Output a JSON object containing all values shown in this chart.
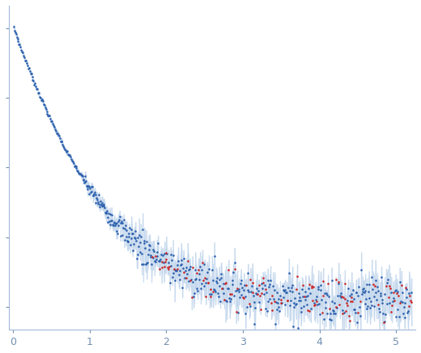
{
  "xlim": [
    -0.05,
    5.25
  ],
  "ylim": [
    -0.08,
    1.08
  ],
  "xticks": [
    0,
    1,
    2,
    3,
    4,
    5
  ],
  "ytick_positions": [
    0.0,
    0.25,
    0.5,
    0.75,
    1.0
  ],
  "blue_dot_color": "#2b5fac",
  "red_dot_color": "#cc2222",
  "error_band_color": "#c5d8ee",
  "error_line_color": "#a8c4e0",
  "spine_color": "#a0b8d8",
  "tick_color": "#7090b0",
  "background_color": "#ffffff",
  "seed": 7
}
